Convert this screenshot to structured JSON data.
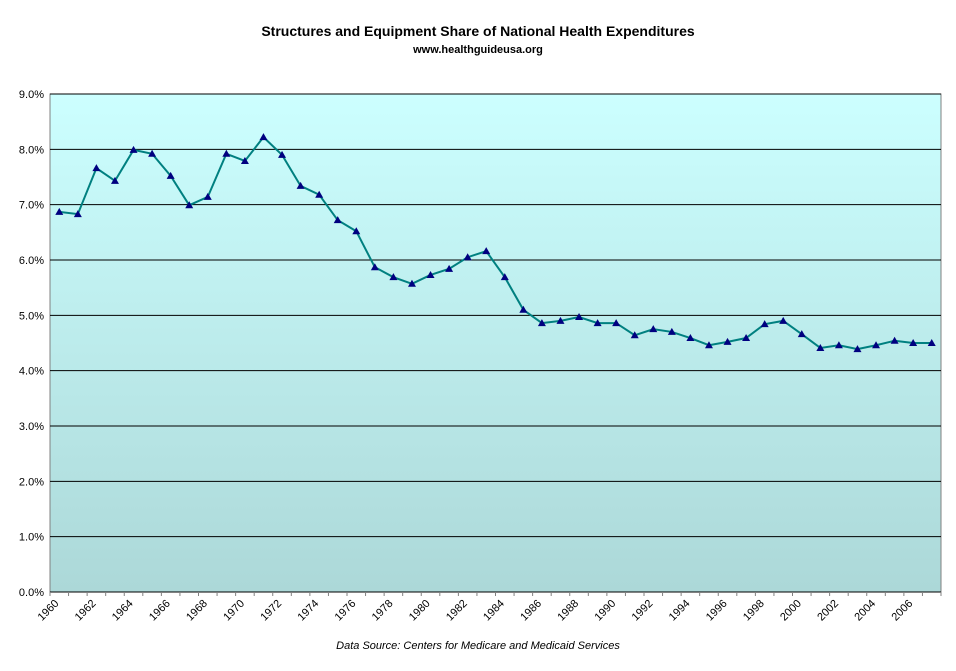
{
  "chart_data": {
    "type": "line",
    "title": "Structures and Equipment Share of National Health Expenditures",
    "subtitle": "www.healthguideusa.org",
    "source": "Data Source: Centers for Medicare and Medicaid Services",
    "categories": [
      "1960",
      null,
      "1962",
      null,
      "1964",
      null,
      "1966",
      null,
      "1968",
      null,
      "1970",
      null,
      "1972",
      null,
      "1974",
      null,
      "1976",
      null,
      "1978",
      null,
      "1980",
      null,
      "1982",
      null,
      "1984",
      null,
      "1986",
      null,
      "1988",
      null,
      "1990",
      null,
      "1992",
      null,
      "1994",
      null,
      "1996",
      null,
      "1998",
      null,
      "2000",
      null,
      "2002",
      null,
      "2004",
      null,
      "2006",
      null
    ],
    "series": [
      {
        "color": "#008080",
        "marker_color": "#000080",
        "values": [
          6.87,
          6.83,
          7.66,
          7.43,
          7.99,
          7.92,
          7.52,
          6.99,
          7.14,
          7.92,
          7.79,
          8.22,
          7.9,
          7.34,
          7.18,
          6.72,
          6.52,
          5.87,
          5.69,
          5.57,
          5.73,
          5.84,
          6.05,
          6.16,
          5.69,
          5.1,
          4.86,
          4.9,
          4.97,
          4.86,
          4.86,
          4.64,
          4.75,
          4.7,
          4.59,
          4.46,
          4.52,
          4.59,
          4.84,
          4.9,
          4.66,
          4.41,
          4.46,
          4.39,
          4.46,
          4.54,
          4.5,
          4.5
        ]
      }
    ],
    "ylim": [
      0,
      9
    ],
    "yticks": [
      {
        "value": 0,
        "label": "0.0%"
      },
      {
        "value": 1,
        "label": "1.0%"
      },
      {
        "value": 2,
        "label": "2.0%"
      },
      {
        "value": 3,
        "label": "3.0%"
      },
      {
        "value": 4,
        "label": "4.0%"
      },
      {
        "value": 5,
        "label": "5.0%"
      },
      {
        "value": 6,
        "label": "6.0%"
      },
      {
        "value": 7,
        "label": "7.0%"
      },
      {
        "value": 8,
        "label": "8.0%"
      },
      {
        "value": 9,
        "label": "9.0%"
      }
    ],
    "grid": true
  }
}
